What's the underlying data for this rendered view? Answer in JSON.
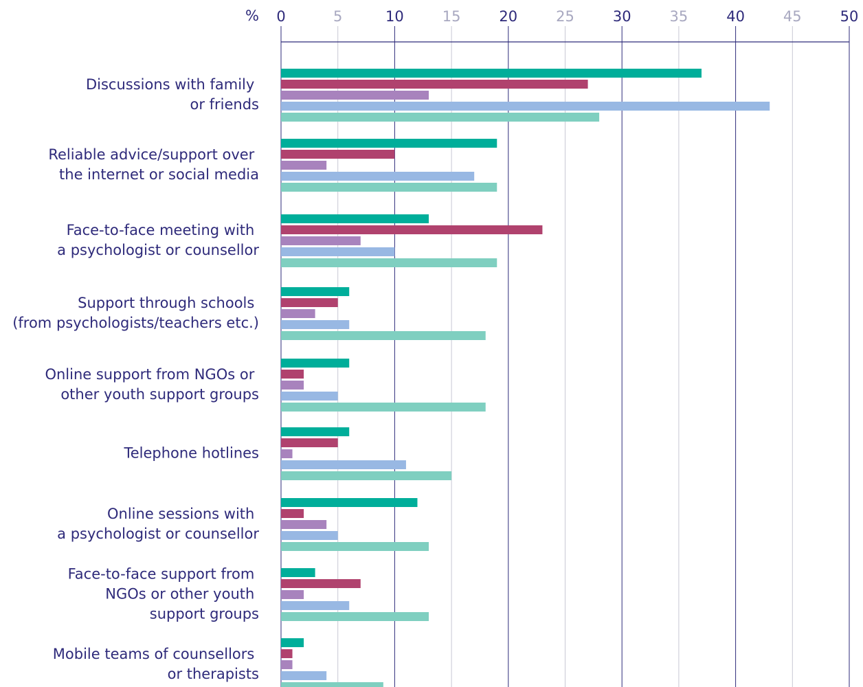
{
  "chart_data": {
    "type": "hbar",
    "xlabel": "%",
    "categories": [
      "Discussions with family or friends",
      "Reliable advice/support over the internet or social media",
      "Face-to-face meeting with a psychologist or counsellor",
      "Support through schools (from psychologists/teachers etc.)",
      "Online support from NGOs or other youth support groups",
      "Telephone hotlines",
      "Online sessions with a psychologist or counsellor",
      "Face-to-face support from NGOs or other youth support groups",
      "Mobile teams of counsellors or therapists"
    ],
    "series": [
      {
        "color": "#00ae9a",
        "values": [
          37,
          19,
          13,
          6,
          6,
          6,
          12,
          3,
          2
        ]
      },
      {
        "color": "#b0426e",
        "values": [
          27,
          10,
          23,
          5,
          2,
          5,
          2,
          7,
          1
        ]
      },
      {
        "color": "#a883bd",
        "values": [
          13,
          4,
          7,
          3,
          2,
          1,
          4,
          2,
          1
        ]
      },
      {
        "color": "#98b8e3",
        "values": [
          43,
          17,
          10,
          6,
          5,
          11,
          5,
          6,
          4
        ]
      },
      {
        "color": "#7fcfc0",
        "values": [
          28,
          19,
          19,
          18,
          18,
          15,
          13,
          13,
          9
        ]
      }
    ],
    "xlim": [
      0,
      50
    ],
    "xticks": [
      0,
      5,
      10,
      15,
      20,
      25,
      30,
      35,
      40,
      45,
      50
    ],
    "grid": true
  }
}
